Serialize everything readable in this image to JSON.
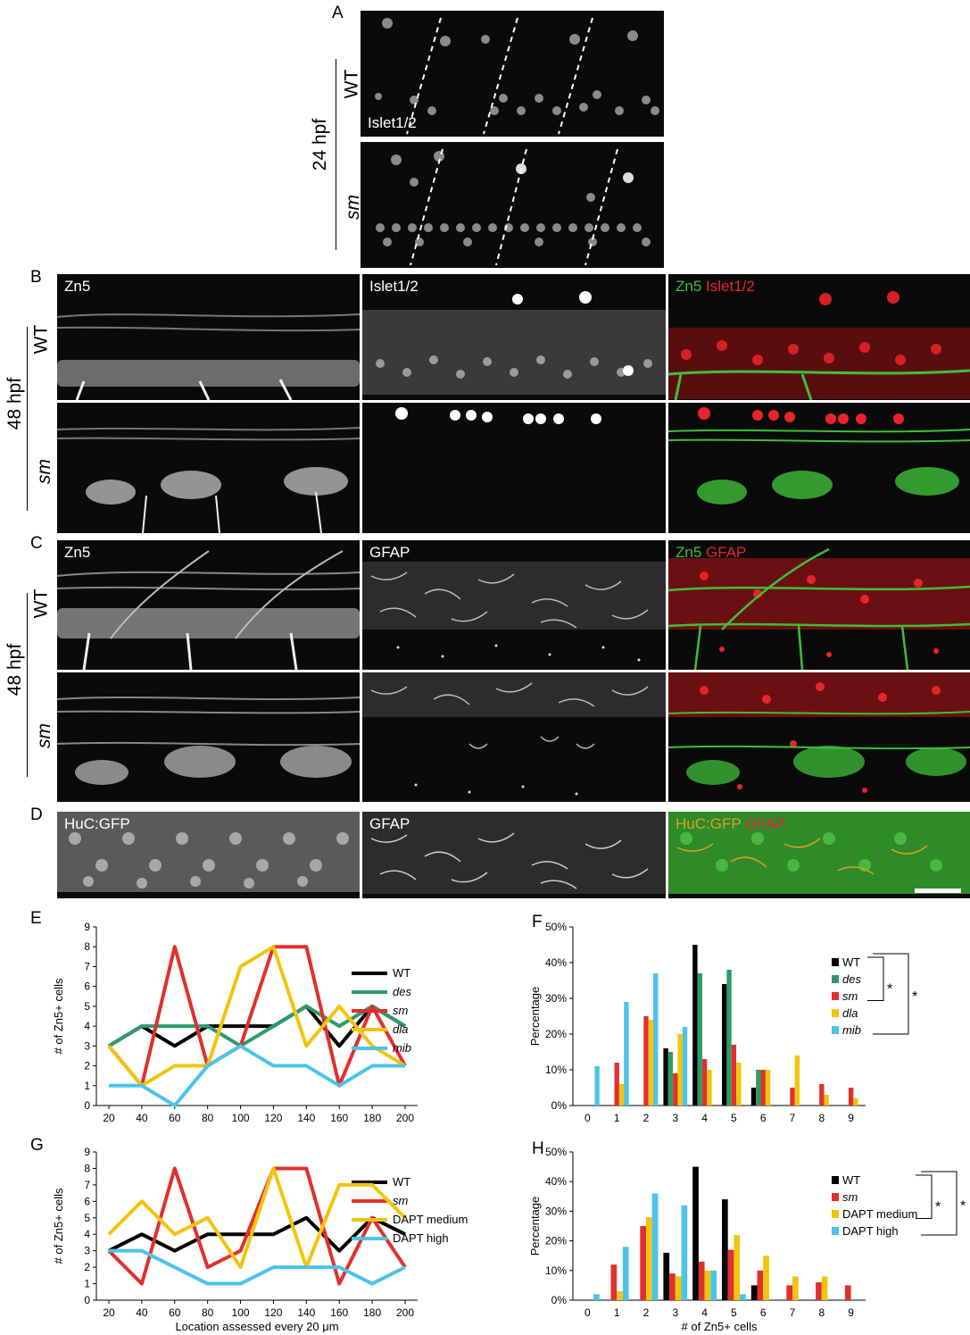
{
  "panel_labels": {
    "a": "A",
    "b": "B",
    "c": "C",
    "d": "D",
    "e": "E",
    "f": "F",
    "g": "G",
    "h": "H"
  },
  "conditions": {
    "wt": "WT",
    "sm": "sm",
    "hpf24": "24 hpf",
    "hpf48": "48 hpf"
  },
  "stains": {
    "islet": "Islet1/2",
    "zn5": "Zn5",
    "gfap": "GFAP",
    "huc": "HuC:GFP",
    "merge_zn5": "Zn5",
    "merge_islet": "Islet1/2",
    "merge_gfap": "GFAP",
    "merge_huc": "HuC:GFP"
  },
  "colors": {
    "green": "#3fbf3a",
    "red": "#e8242a",
    "orange": "#e0a020",
    "black": "#000000",
    "teal": "#2e9a6a",
    "chart_red": "#e0302e",
    "yellow": "#f2c40f",
    "cyan": "#4cc3e8"
  },
  "chart_data": [
    {
      "id": "E",
      "type": "line",
      "xlabel": "",
      "ylabel": "# of Zn5+ cells",
      "x": [
        20,
        40,
        60,
        80,
        100,
        120,
        140,
        160,
        180,
        200
      ],
      "ylim": [
        0,
        9
      ],
      "yticks": [
        "0",
        "1",
        "2",
        "3",
        "4",
        "5",
        "6",
        "7",
        "8",
        "9"
      ],
      "series": [
        {
          "name": "WT",
          "italic": false,
          "color": "#000000",
          "values": [
            3,
            4,
            3,
            4,
            4,
            4,
            5,
            3,
            5,
            4
          ]
        },
        {
          "name": "des",
          "italic": true,
          "color": "#2e9a6a",
          "values": [
            3,
            4,
            4,
            4,
            3,
            4,
            5,
            4,
            5,
            4
          ]
        },
        {
          "name": "sm",
          "italic": true,
          "color": "#e0302e",
          "values": [
            3,
            1,
            8,
            2,
            3,
            8,
            8,
            1,
            5,
            2
          ]
        },
        {
          "name": "dla",
          "italic": true,
          "color": "#f2c40f",
          "values": [
            3,
            1,
            2,
            2,
            7,
            8,
            3,
            5,
            3,
            2
          ]
        },
        {
          "name": "mib",
          "italic": true,
          "color": "#4cc3e8",
          "values": [
            1,
            1,
            0,
            2,
            3,
            2,
            2,
            1,
            2,
            2
          ]
        }
      ]
    },
    {
      "id": "F",
      "type": "bar",
      "xlabel": "",
      "ylabel": "Percentage",
      "categories": [
        "0",
        "1",
        "2",
        "3",
        "4",
        "5",
        "6",
        "7",
        "8",
        "9"
      ],
      "ylim": [
        0,
        50
      ],
      "yticks": [
        "0%",
        "10%",
        "20%",
        "30%",
        "40%",
        "50%"
      ],
      "series": [
        {
          "name": "WT",
          "italic": false,
          "color": "#000000",
          "values": [
            0,
            0,
            0,
            16,
            45,
            34,
            5,
            0,
            0,
            0
          ]
        },
        {
          "name": "des",
          "italic": true,
          "color": "#2e9a6a",
          "values": [
            0,
            0,
            0,
            15,
            37,
            38,
            10,
            0,
            0,
            0
          ]
        },
        {
          "name": "sm",
          "italic": true,
          "color": "#e0302e",
          "values": [
            0,
            12,
            25,
            9,
            13,
            17,
            10,
            5,
            6,
            5
          ]
        },
        {
          "name": "dla",
          "italic": true,
          "color": "#f2c40f",
          "values": [
            0,
            6,
            24,
            20,
            10,
            12,
            10,
            14,
            3,
            2
          ]
        },
        {
          "name": "mib",
          "italic": true,
          "color": "#4cc3e8",
          "values": [
            11,
            29,
            37,
            22,
            0,
            0,
            0,
            0,
            0,
            0
          ]
        }
      ],
      "significance": [
        "*",
        "*"
      ]
    },
    {
      "id": "G",
      "type": "line",
      "xlabel": "Location assessed every 20 μm",
      "ylabel": "# of Zn5+ cells",
      "x": [
        20,
        40,
        60,
        80,
        100,
        120,
        140,
        160,
        180,
        200
      ],
      "ylim": [
        0,
        9
      ],
      "yticks": [
        "0",
        "1",
        "2",
        "3",
        "4",
        "5",
        "6",
        "7",
        "8",
        "9"
      ],
      "series": [
        {
          "name": "WT",
          "italic": false,
          "color": "#000000",
          "values": [
            3,
            4,
            3,
            4,
            4,
            4,
            5,
            3,
            5,
            4
          ]
        },
        {
          "name": "sm",
          "italic": true,
          "color": "#e0302e",
          "values": [
            3,
            1,
            8,
            2,
            3,
            8,
            8,
            1,
            5,
            2
          ]
        },
        {
          "name": "DAPT medium",
          "italic": false,
          "color": "#f2c40f",
          "values": [
            4,
            6,
            4,
            5,
            2,
            8,
            2,
            7,
            7,
            5
          ]
        },
        {
          "name": "DAPT high",
          "italic": false,
          "color": "#4cc3e8",
          "values": [
            3,
            3,
            2,
            1,
            1,
            2,
            2,
            2,
            1,
            2
          ]
        }
      ]
    },
    {
      "id": "H",
      "type": "bar",
      "xlabel": "# of Zn5+ cells",
      "ylabel": "Percentage",
      "categories": [
        "0",
        "1",
        "2",
        "3",
        "4",
        "5",
        "6",
        "7",
        "8",
        "9"
      ],
      "ylim": [
        0,
        50
      ],
      "yticks": [
        "0%",
        "10%",
        "20%",
        "30%",
        "40%",
        "50%"
      ],
      "series": [
        {
          "name": "WT",
          "italic": false,
          "color": "#000000",
          "values": [
            0,
            0,
            0,
            16,
            45,
            34,
            5,
            0,
            0,
            0
          ]
        },
        {
          "name": "sm",
          "italic": true,
          "color": "#e0302e",
          "values": [
            0,
            12,
            25,
            9,
            13,
            17,
            10,
            5,
            6,
            5
          ]
        },
        {
          "name": "DAPT medium",
          "italic": false,
          "color": "#f2c40f",
          "values": [
            0,
            3,
            28,
            8,
            10,
            22,
            15,
            8,
            8,
            0
          ]
        },
        {
          "name": "DAPT high",
          "italic": false,
          "color": "#4cc3e8",
          "values": [
            2,
            18,
            36,
            32,
            10,
            2,
            0,
            0,
            0,
            0
          ]
        }
      ],
      "significance": [
        "*",
        "*"
      ]
    }
  ]
}
